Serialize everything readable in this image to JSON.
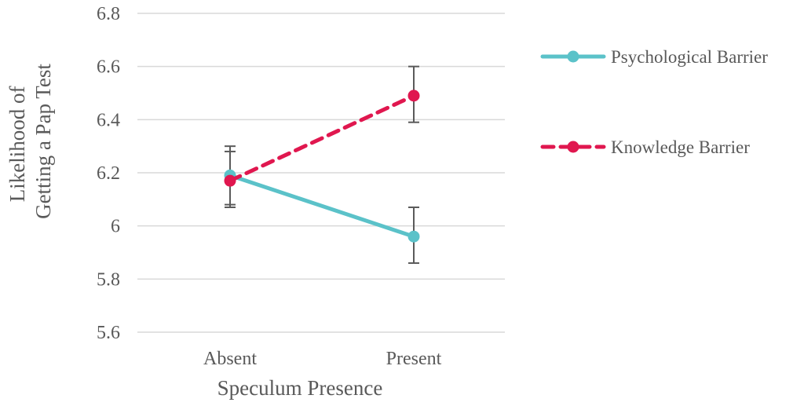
{
  "chart_data": {
    "type": "line",
    "categories": [
      "Absent",
      "Present"
    ],
    "xlabel": "Speculum Presence",
    "ylabel_lines": [
      "Likelihood of",
      "Getting a Pap Test"
    ],
    "ylim": [
      5.6,
      6.8
    ],
    "yticks": [
      5.6,
      5.8,
      6,
      6.2,
      6.4,
      6.6,
      6.8
    ],
    "ytick_labels": [
      "5.6",
      "5.8",
      "6",
      "6.2",
      "6.4",
      "6.6",
      "6.8"
    ],
    "grid": true,
    "legend_position": "right",
    "series": [
      {
        "name": "Psychological Barrier",
        "values": [
          6.19,
          5.96
        ],
        "error_low": [
          6.07,
          5.86
        ],
        "error_high": [
          6.3,
          6.07
        ],
        "color": "#5bc2c9",
        "line_style": "solid"
      },
      {
        "name": "Knowledge Barrier",
        "values": [
          6.17,
          6.49
        ],
        "error_low": [
          6.08,
          6.39
        ],
        "error_high": [
          6.28,
          6.6
        ],
        "color": "#e0174f",
        "line_style": "dashed"
      }
    ]
  }
}
